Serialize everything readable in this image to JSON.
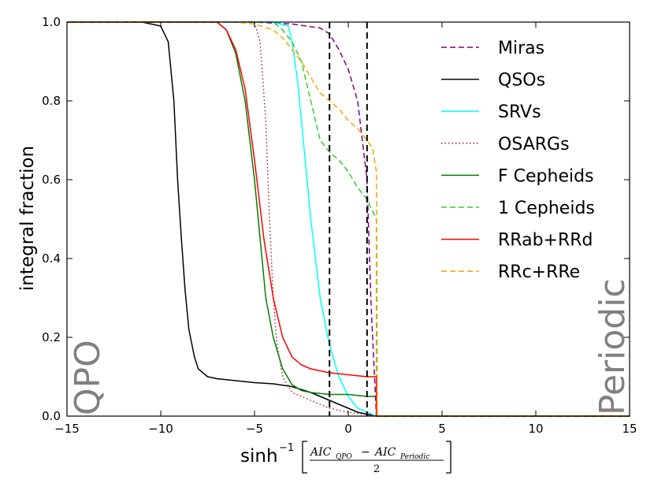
{
  "chart_data": {
    "type": "line",
    "xlabel": "sinh",
    "xlabel_sup": "−1",
    "xlabel_frac_num": "AIC",
    "xlabel_frac_num_sub1": "QPO",
    "xlabel_frac_minus": "−",
    "xlabel_frac_num2": "AIC",
    "xlabel_frac_num_sub2": "Periodic",
    "xlabel_frac_den": "2",
    "ylabel": "integral fraction",
    "xlim": [
      -15,
      15
    ],
    "ylim": [
      0,
      1
    ],
    "xticks": [
      -15,
      -10,
      -5,
      0,
      5,
      10,
      15
    ],
    "xtick_labels": [
      "−15",
      "−10",
      "−5",
      "0",
      "5",
      "10",
      "15"
    ],
    "yticks": [
      0,
      0.2,
      0.4,
      0.6,
      0.8,
      1.0
    ],
    "ytick_labels": [
      "0.0",
      "0.2",
      "0.4",
      "0.6",
      "0.8",
      "1.0"
    ],
    "annotations": {
      "left": "QPO",
      "right": "Periodic"
    },
    "vlines": [
      -1,
      1
    ],
    "legend_position": "upper right",
    "series": [
      {
        "name": "Miras",
        "color": "#800080",
        "dash": "dashed",
        "x": [
          -15,
          -7,
          -5,
          -3,
          -1.5,
          -1,
          -0.5,
          0,
          0.5,
          1,
          1.2,
          1.4,
          1.5,
          15
        ],
        "y": [
          1,
          1,
          1,
          0.995,
          0.985,
          0.97,
          0.93,
          0.88,
          0.8,
          0.6,
          0.3,
          0.1,
          0.0,
          0.0
        ]
      },
      {
        "name": "QSOs",
        "color": "#000000",
        "dash": "solid",
        "x": [
          -15,
          -11,
          -10,
          -9.6,
          -9.3,
          -9.1,
          -8.9,
          -8.7,
          -8.5,
          -8.2,
          -8,
          -7.5,
          -7,
          -6,
          -5,
          -4,
          -3,
          -2,
          -1.5,
          -1,
          -0.5,
          0,
          0.5,
          1.5,
          15
        ],
        "y": [
          1,
          1,
          0.99,
          0.95,
          0.8,
          0.6,
          0.45,
          0.32,
          0.22,
          0.15,
          0.12,
          0.1,
          0.095,
          0.09,
          0.085,
          0.082,
          0.075,
          0.06,
          0.05,
          0.04,
          0.03,
          0.02,
          0.01,
          0.0,
          0.0
        ]
      },
      {
        "name": "SRVs",
        "color": "#00ffff",
        "dash": "solid",
        "x": [
          -15,
          -4,
          -3.2,
          -3,
          -2.7,
          -2.4,
          -2,
          -1.5,
          -1,
          -0.5,
          0,
          0.5,
          1.5,
          15
        ],
        "y": [
          1,
          1,
          0.99,
          0.95,
          0.85,
          0.7,
          0.5,
          0.3,
          0.18,
          0.1,
          0.05,
          0.02,
          0.0,
          0.0
        ]
      },
      {
        "name": "OSARGs",
        "color": "#a52a2a",
        "dash": "dotted",
        "x": [
          -15,
          -5,
          -4.7,
          -4.4,
          -4.2,
          -4,
          -3.8,
          -3.5,
          -3,
          -2,
          -1,
          0,
          1.5,
          15
        ],
        "y": [
          1,
          1,
          0.95,
          0.75,
          0.5,
          0.3,
          0.18,
          0.1,
          0.06,
          0.04,
          0.02,
          0.01,
          0.0,
          0.0
        ]
      },
      {
        "name": "F Cepheids",
        "color": "#008000",
        "dash": "solid",
        "x": [
          -15,
          -7,
          -6.5,
          -6,
          -5.5,
          -5,
          -4.7,
          -4.4,
          -4,
          -3.5,
          -3,
          -2.5,
          -2,
          -1,
          0,
          1,
          1.5,
          1.5,
          15
        ],
        "y": [
          1,
          1,
          0.98,
          0.92,
          0.8,
          0.6,
          0.45,
          0.3,
          0.2,
          0.12,
          0.08,
          0.065,
          0.06,
          0.055,
          0.055,
          0.05,
          0.05,
          0.0,
          0.0
        ]
      },
      {
        "name": "1 Cepheids",
        "color": "#32cd32",
        "dash": "dashed",
        "x": [
          -15,
          -4,
          -3.5,
          -3,
          -2.5,
          -2,
          -1.5,
          -1,
          -0.5,
          0,
          0.5,
          1,
          1.3,
          1.5,
          1.5,
          15
        ],
        "y": [
          1,
          1,
          0.98,
          0.95,
          0.9,
          0.8,
          0.7,
          0.67,
          0.65,
          0.62,
          0.58,
          0.55,
          0.52,
          0.5,
          0.0,
          0.0
        ]
      },
      {
        "name": "RRab+RRd",
        "color": "#ff0000",
        "dash": "solid",
        "x": [
          -15,
          -7,
          -6.5,
          -6,
          -5.5,
          -5,
          -4.5,
          -4,
          -3.5,
          -3,
          -2.5,
          -2,
          -1.5,
          -1,
          0,
          1,
          1.5,
          1.5,
          15
        ],
        "y": [
          1,
          1,
          0.98,
          0.93,
          0.83,
          0.65,
          0.45,
          0.3,
          0.2,
          0.15,
          0.13,
          0.12,
          0.115,
          0.11,
          0.105,
          0.1,
          0.1,
          0.0,
          0.0
        ]
      },
      {
        "name": "RRc+RRe",
        "color": "#ffa500",
        "dash": "dashed",
        "x": [
          -15,
          -6,
          -5,
          -4,
          -3.5,
          -3,
          -2.5,
          -2,
          -1.5,
          -1,
          -0.5,
          0,
          0.5,
          1,
          1.3,
          1.5,
          1.55,
          15
        ],
        "y": [
          1,
          1,
          0.995,
          0.98,
          0.96,
          0.93,
          0.9,
          0.86,
          0.82,
          0.8,
          0.78,
          0.75,
          0.73,
          0.7,
          0.68,
          0.62,
          0.0,
          0.0
        ]
      }
    ]
  }
}
